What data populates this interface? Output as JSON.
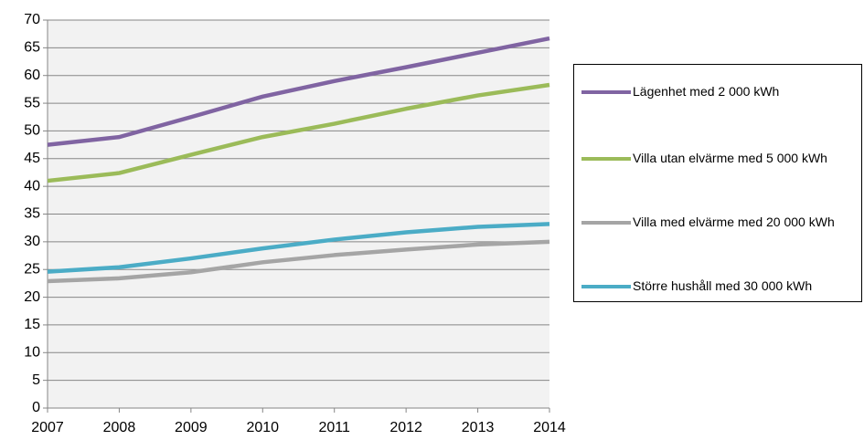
{
  "chart_data": {
    "type": "line",
    "x": [
      2007,
      2008,
      2009,
      2010,
      2011,
      2012,
      2013,
      2014
    ],
    "xlim": [
      2007,
      2014
    ],
    "xticks": [
      2007,
      2008,
      2009,
      2010,
      2011,
      2012,
      2013,
      2014
    ],
    "ylim": [
      0,
      70
    ],
    "yticks": [
      0,
      5,
      10,
      15,
      20,
      25,
      30,
      35,
      40,
      45,
      50,
      55,
      60,
      65,
      70
    ],
    "grid": true,
    "legend": "right",
    "series": [
      {
        "name": "Lägenhet med 2 000 kWh",
        "color": "#8064a2",
        "values": [
          47.5,
          48.9,
          52.5,
          56.2,
          59.0,
          61.5,
          64.1,
          66.7
        ]
      },
      {
        "name": "Villa utan elvärme med 5 000 kWh",
        "color": "#9bbb59",
        "values": [
          41.0,
          42.4,
          45.7,
          48.9,
          51.3,
          54.0,
          56.4,
          58.3
        ]
      },
      {
        "name": "Villa med elvärme med 20 000 kWh",
        "color": "#a5a5a5",
        "values": [
          22.9,
          23.4,
          24.5,
          26.3,
          27.6,
          28.6,
          29.5,
          30.0
        ]
      },
      {
        "name": "Större hushåll med 30 000 kWh",
        "color": "#4bacc6",
        "values": [
          24.6,
          25.4,
          27.0,
          28.8,
          30.4,
          31.7,
          32.7,
          33.2
        ]
      }
    ]
  }
}
